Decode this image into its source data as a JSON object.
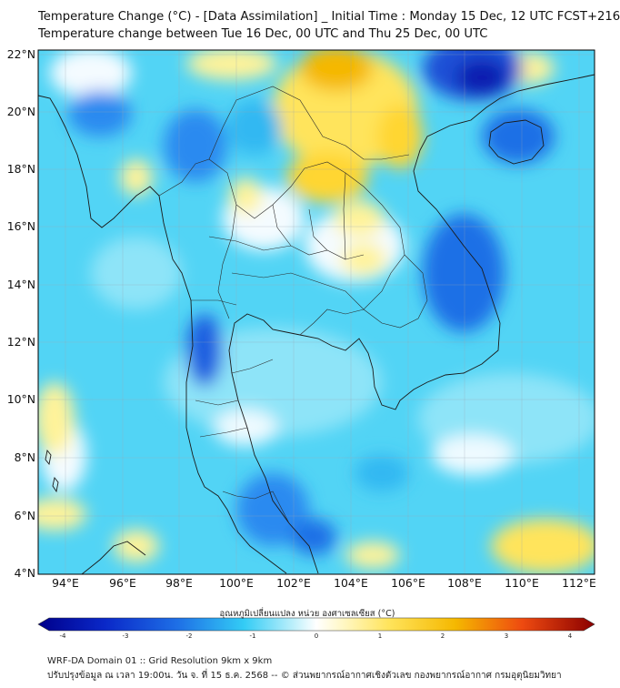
{
  "title": {
    "line1": "Temperature Change (°C) - [Data Assimilation] _ Initial Time : Monday 15 Dec, 12 UTC FCST+216",
    "line2": "Temperature change between Tue 16 Dec, 00 UTC and Thu 25 Dec, 00 UTC"
  },
  "axes": {
    "y_labels": [
      "22°N",
      "20°N",
      "18°N",
      "16°N",
      "14°N",
      "12°N",
      "10°N",
      "8°N",
      "6°N",
      "4°N"
    ],
    "x_labels": [
      "94°E",
      "96°E",
      "98°E",
      "100°E",
      "102°E",
      "104°E",
      "106°E",
      "108°E",
      "110°E",
      "112°E"
    ],
    "lat_range": [
      4,
      22.3
    ],
    "lon_range": [
      93,
      112.5
    ]
  },
  "colorbar": {
    "title": "อุณหภูมิเปลี่ยนแปลง หน่วย องศาเซลเซียส (°C)",
    "ticks": [
      "-4",
      "-3",
      "-2",
      "-1",
      "0",
      "1",
      "2",
      "3",
      "4"
    ],
    "range": [
      -4,
      4
    ],
    "colors": {
      "deep_negative": "#00008b",
      "negative": "#1e6fe6",
      "slight_negative": "#33ccf5",
      "near_zero": "#ffffff",
      "slight_positive": "#fff39a",
      "positive": "#f5b800",
      "deep_positive": "#8b0000"
    }
  },
  "footer": {
    "line1": "WRF-DA Domain 01 :: Grid Resolution 9km x 9km",
    "line2": "ปรับปรุงข้อมูล ณ เวลา 19:00น. วัน จ. ที่ 15 ธ.ค. 2568 -- © ส่วนพยากรณ์อากาศเชิงตัวเลข กองพยากรณ์อากาศ กรมอุตุนิยมวิทยา"
  }
}
